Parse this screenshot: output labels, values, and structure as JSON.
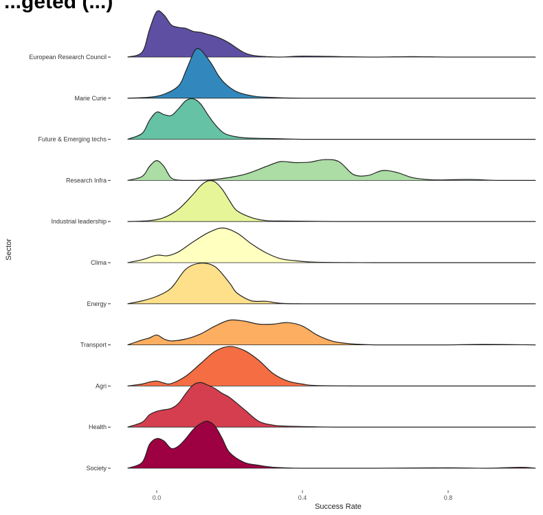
{
  "chart_data": {
    "type": "ridgeline",
    "title": "...geted (...)",
    "xlabel": "Success  Rate",
    "ylabel": "Sector",
    "xlim": [
      -0.09,
      1.05
    ],
    "xticks": [
      "0.0",
      "0.4",
      "0.8"
    ],
    "xtick_values": [
      0.0,
      0.4,
      0.8
    ],
    "grid": false,
    "legend": "none",
    "series": [
      {
        "name": "European Research Council",
        "color": "#5e4fa2",
        "x": [
          -0.08,
          -0.04,
          -0.02,
          0.0,
          0.02,
          0.04,
          0.06,
          0.08,
          0.1,
          0.12,
          0.14,
          0.16,
          0.18,
          0.2,
          0.22,
          0.24,
          0.26,
          0.28,
          0.3,
          0.34,
          0.4,
          0.5,
          0.6,
          0.7,
          0.8,
          0.9,
          1.0,
          1.04
        ],
        "density": [
          0.0,
          0.1,
          0.55,
          0.92,
          0.85,
          0.65,
          0.6,
          0.58,
          0.52,
          0.5,
          0.46,
          0.42,
          0.36,
          0.28,
          0.18,
          0.09,
          0.04,
          0.02,
          0.01,
          0.0,
          0.02,
          0.01,
          0.0,
          0.01,
          0.0,
          0.0,
          0.0,
          0.0
        ]
      },
      {
        "name": "Marie Curie",
        "color": "#3288bd",
        "x": [
          -0.08,
          -0.02,
          0.02,
          0.06,
          0.08,
          0.1,
          0.11,
          0.12,
          0.13,
          0.15,
          0.17,
          0.19,
          0.22,
          0.26,
          0.3,
          0.4,
          0.6,
          0.8,
          1.0,
          1.04
        ],
        "density": [
          0.0,
          0.02,
          0.08,
          0.25,
          0.55,
          0.9,
          1.0,
          0.98,
          0.9,
          0.7,
          0.45,
          0.28,
          0.13,
          0.05,
          0.02,
          0.0,
          0.0,
          0.0,
          0.0,
          0.0
        ]
      },
      {
        "name": "Future & Emerging techs",
        "color": "#66c2a5",
        "x": [
          -0.08,
          -0.04,
          -0.02,
          0.0,
          0.02,
          0.04,
          0.06,
          0.08,
          0.1,
          0.12,
          0.14,
          0.16,
          0.18,
          0.2,
          0.24,
          0.28,
          0.34,
          0.4,
          0.6,
          0.8,
          1.0,
          1.04
        ],
        "density": [
          0.0,
          0.12,
          0.38,
          0.55,
          0.5,
          0.48,
          0.62,
          0.78,
          0.82,
          0.72,
          0.5,
          0.3,
          0.15,
          0.08,
          0.03,
          0.02,
          0.01,
          0.0,
          0.0,
          0.0,
          0.0,
          0.0
        ]
      },
      {
        "name": "Research Infra",
        "color": "#abdda4",
        "x": [
          -0.08,
          -0.04,
          -0.02,
          0.0,
          0.02,
          0.04,
          0.07,
          0.1,
          0.16,
          0.24,
          0.3,
          0.34,
          0.38,
          0.42,
          0.46,
          0.5,
          0.54,
          0.58,
          0.62,
          0.66,
          0.7,
          0.74,
          0.78,
          0.86,
          0.94,
          1.04
        ],
        "density": [
          0.0,
          0.08,
          0.28,
          0.4,
          0.28,
          0.05,
          0.0,
          0.0,
          0.02,
          0.12,
          0.28,
          0.38,
          0.36,
          0.37,
          0.42,
          0.38,
          0.12,
          0.1,
          0.2,
          0.16,
          0.06,
          0.02,
          0.01,
          0.02,
          0.0,
          0.0
        ]
      },
      {
        "name": "Industrial leadership",
        "color": "#e6f598",
        "x": [
          -0.08,
          -0.02,
          0.02,
          0.06,
          0.1,
          0.12,
          0.14,
          0.16,
          0.18,
          0.2,
          0.22,
          0.26,
          0.3,
          0.36,
          0.5,
          0.7,
          1.0,
          1.04
        ],
        "density": [
          0.0,
          0.02,
          0.08,
          0.25,
          0.55,
          0.72,
          0.82,
          0.8,
          0.65,
          0.42,
          0.22,
          0.08,
          0.02,
          0.01,
          0.0,
          0.0,
          0.0,
          0.0
        ]
      },
      {
        "name": "Clima",
        "color": "#ffffbf",
        "x": [
          -0.08,
          -0.04,
          0.0,
          0.03,
          0.06,
          0.1,
          0.14,
          0.18,
          0.22,
          0.26,
          0.3,
          0.34,
          0.38,
          0.44,
          0.6,
          0.8,
          1.0,
          1.04
        ],
        "density": [
          0.0,
          0.06,
          0.15,
          0.14,
          0.22,
          0.42,
          0.6,
          0.7,
          0.6,
          0.38,
          0.2,
          0.08,
          0.04,
          0.01,
          0.0,
          0.0,
          0.0,
          0.0
        ]
      },
      {
        "name": "Energy",
        "color": "#fee08b",
        "x": [
          -0.08,
          -0.04,
          0.0,
          0.04,
          0.08,
          0.12,
          0.16,
          0.2,
          0.22,
          0.26,
          0.3,
          0.34,
          0.4,
          0.5,
          0.7,
          1.0,
          1.04
        ],
        "density": [
          0.0,
          0.06,
          0.15,
          0.32,
          0.7,
          0.82,
          0.75,
          0.42,
          0.22,
          0.06,
          0.05,
          0.01,
          0.0,
          0.0,
          0.0,
          0.0,
          0.0
        ]
      },
      {
        "name": "Transport",
        "color": "#fdae61",
        "x": [
          -0.08,
          -0.04,
          -0.02,
          0.0,
          0.02,
          0.04,
          0.08,
          0.12,
          0.16,
          0.2,
          0.24,
          0.28,
          0.32,
          0.36,
          0.4,
          0.44,
          0.48,
          0.52,
          0.56,
          0.6,
          0.7,
          0.8,
          0.9,
          1.04
        ],
        "density": [
          0.0,
          0.1,
          0.14,
          0.2,
          0.12,
          0.08,
          0.12,
          0.22,
          0.38,
          0.5,
          0.48,
          0.42,
          0.42,
          0.45,
          0.38,
          0.2,
          0.08,
          0.03,
          0.01,
          0.0,
          0.0,
          0.0,
          0.01,
          0.0
        ]
      },
      {
        "name": "Agri",
        "color": "#f46d43",
        "x": [
          -0.08,
          -0.04,
          -0.02,
          0.0,
          0.02,
          0.04,
          0.08,
          0.12,
          0.16,
          0.2,
          0.24,
          0.28,
          0.32,
          0.36,
          0.4,
          0.44,
          0.6,
          0.8,
          1.0,
          1.04
        ],
        "density": [
          0.0,
          0.04,
          0.08,
          0.1,
          0.06,
          0.05,
          0.2,
          0.45,
          0.7,
          0.8,
          0.72,
          0.52,
          0.25,
          0.1,
          0.04,
          0.01,
          0.0,
          0.0,
          0.0,
          0.0
        ]
      },
      {
        "name": "Health",
        "color": "#d53e4f",
        "x": [
          -0.08,
          -0.04,
          -0.02,
          0.0,
          0.02,
          0.04,
          0.06,
          0.08,
          0.1,
          0.12,
          0.14,
          0.16,
          0.18,
          0.2,
          0.24,
          0.28,
          0.32,
          0.36,
          0.5,
          0.7,
          1.0,
          1.04
        ],
        "density": [
          0.0,
          0.1,
          0.25,
          0.32,
          0.35,
          0.38,
          0.48,
          0.68,
          0.85,
          0.9,
          0.85,
          0.78,
          0.68,
          0.6,
          0.36,
          0.12,
          0.04,
          0.02,
          0.0,
          0.0,
          0.0,
          0.0
        ]
      },
      {
        "name": "Society",
        "color": "#9e0142",
        "x": [
          -0.08,
          -0.04,
          -0.02,
          0.0,
          0.02,
          0.04,
          0.06,
          0.08,
          0.1,
          0.12,
          0.14,
          0.16,
          0.18,
          0.2,
          0.24,
          0.28,
          0.32,
          0.4,
          0.6,
          0.8,
          0.9,
          1.0,
          1.04
        ],
        "density": [
          0.0,
          0.12,
          0.48,
          0.6,
          0.55,
          0.4,
          0.45,
          0.6,
          0.78,
          0.9,
          0.95,
          0.85,
          0.6,
          0.32,
          0.12,
          0.06,
          0.02,
          0.0,
          0.0,
          0.01,
          0.0,
          0.02,
          0.0
        ]
      }
    ]
  }
}
